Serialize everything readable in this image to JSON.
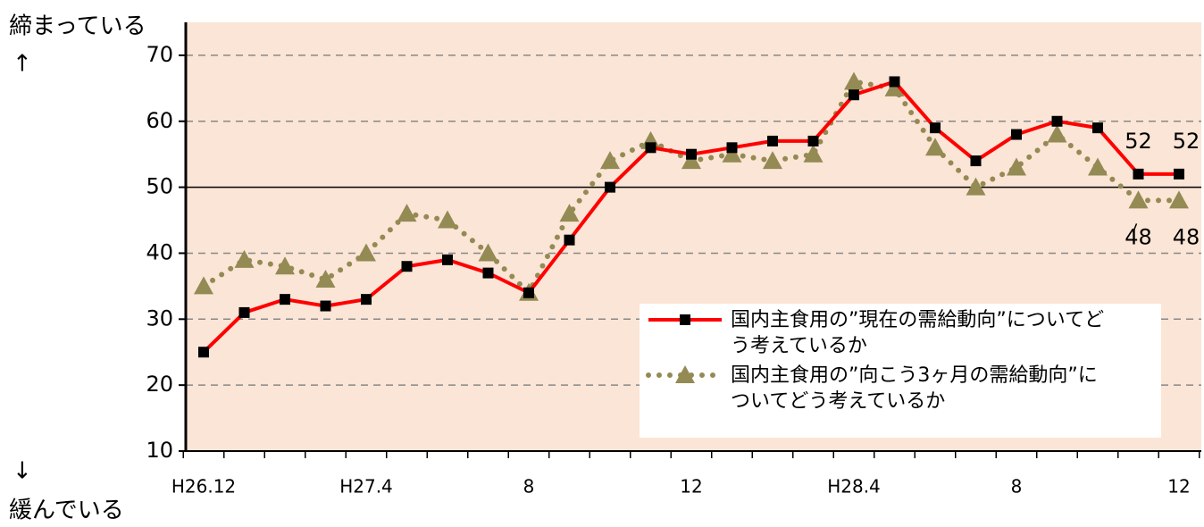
{
  "chart_data": {
    "type": "line",
    "top_label": "締まっている",
    "top_arrow": "↑",
    "bottom_arrow": "↓",
    "bottom_label": "緩んでいる",
    "categories": [
      "H26.12",
      null,
      null,
      null,
      "H27.4",
      null,
      null,
      null,
      "8",
      null,
      null,
      null,
      "12",
      null,
      null,
      null,
      "H28.4",
      null,
      null,
      null,
      "8",
      null,
      null,
      null,
      "12"
    ],
    "series": [
      {
        "name": "国内主食用の”現在の需給動向”についてどう考えているか",
        "color": "#ff0000",
        "marker": "square",
        "line": "solid",
        "values": [
          25,
          31,
          33,
          32,
          33,
          38,
          39,
          37,
          34,
          42,
          50,
          56,
          55,
          56,
          57,
          57,
          64,
          66,
          59,
          54,
          58,
          60,
          59,
          52,
          52
        ],
        "value_labels": [
          null,
          null,
          null,
          null,
          null,
          null,
          null,
          null,
          null,
          null,
          null,
          null,
          null,
          null,
          null,
          null,
          null,
          null,
          null,
          null,
          null,
          null,
          null,
          "52",
          "52"
        ]
      },
      {
        "name": "国内主食用の”向こう3ヶ月の需給動向”についてどう考えているか",
        "color": "#948a54",
        "marker": "triangle",
        "line": "dotted",
        "values": [
          35,
          39,
          38,
          36,
          40,
          46,
          45,
          40,
          34,
          46,
          54,
          57,
          54,
          55,
          54,
          55,
          66,
          65,
          56,
          50,
          53,
          58,
          53,
          48,
          48
        ],
        "value_labels": [
          null,
          null,
          null,
          null,
          null,
          null,
          null,
          null,
          null,
          null,
          null,
          null,
          null,
          null,
          null,
          null,
          null,
          null,
          null,
          null,
          null,
          null,
          null,
          "48",
          "48"
        ]
      }
    ],
    "ylim": [
      10,
      75
    ],
    "yticks": [
      10,
      20,
      30,
      40,
      50,
      60,
      70
    ],
    "grid": true,
    "reference_line": 50,
    "background": "#fbe5d6"
  }
}
